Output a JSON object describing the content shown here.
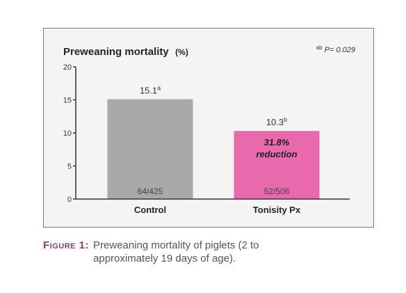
{
  "chart_data": {
    "type": "bar",
    "title": "Preweaning mortality",
    "title_unit": "(%)",
    "p_value_note": {
      "superscript": "ab",
      "text": "P= 0.029"
    },
    "categories": [
      "Control",
      "Tonisity Px"
    ],
    "values": [
      15.1,
      10.3
    ],
    "value_labels": [
      {
        "value": "15.1",
        "superscript": "a"
      },
      {
        "value": "10.3",
        "superscript": "b"
      }
    ],
    "count_labels": [
      "64/425",
      "52/506"
    ],
    "annotation": {
      "line1": "31.8%",
      "line2": "reduction"
    },
    "bar_colors": [
      "#a8a9ab",
      "#e86aad"
    ],
    "ylim": [
      0,
      20
    ],
    "yticks": [
      0,
      5,
      10,
      15,
      20
    ],
    "grid": false,
    "legend": "none"
  },
  "caption": {
    "label": "Figure 1:",
    "text": "Preweaning mortality of piglets (2 to approximately 19 days of age)."
  }
}
